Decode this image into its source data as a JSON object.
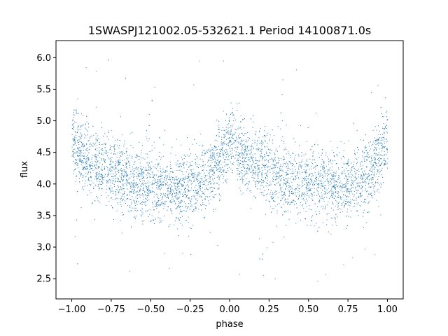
{
  "chart_data": {
    "type": "scatter",
    "title": "1SWASPJ121002.05-532621.1 Period 14100871.0s",
    "xlabel": "phase",
    "ylabel": "flux",
    "xlim": [
      -1.1,
      1.1
    ],
    "ylim": [
      2.18,
      6.27
    ],
    "xticks": [
      -1.0,
      -0.75,
      -0.5,
      -0.25,
      0.0,
      0.25,
      0.5,
      0.75,
      1.0
    ],
    "xtick_labels": [
      "−1.00",
      "−0.75",
      "−0.50",
      "−0.25",
      "0.00",
      "0.25",
      "0.50",
      "0.75",
      "1.00"
    ],
    "yticks": [
      2.5,
      3.0,
      3.5,
      4.0,
      4.5,
      5.0,
      5.5,
      6.0
    ],
    "ytick_labels": [
      "2.5",
      "3.0",
      "3.5",
      "4.0",
      "4.5",
      "5.0",
      "5.5",
      "6.0"
    ],
    "grid": false,
    "series": [
      {
        "color": "#1f77b4",
        "marker_size": 1,
        "trend": {
          "phase": [
            -1.0,
            -0.95,
            -0.9,
            -0.8,
            -0.7,
            -0.6,
            -0.5,
            -0.4,
            -0.3,
            -0.2,
            -0.1,
            -0.05,
            0.0,
            0.05,
            0.1,
            0.2,
            0.3,
            0.4,
            0.5,
            0.6,
            0.7,
            0.8,
            0.9,
            0.95,
            1.0
          ],
          "flux": [
            4.7,
            4.5,
            4.35,
            4.3,
            4.15,
            4.05,
            4.0,
            3.95,
            3.95,
            4.0,
            4.25,
            4.45,
            4.65,
            4.5,
            4.35,
            4.3,
            4.15,
            4.05,
            4.0,
            3.95,
            3.95,
            4.0,
            4.25,
            4.45,
            4.65
          ]
        },
        "scatter_sigma": 0.28,
        "outlier_range": [
          2.4,
          6.05
        ]
      }
    ]
  }
}
